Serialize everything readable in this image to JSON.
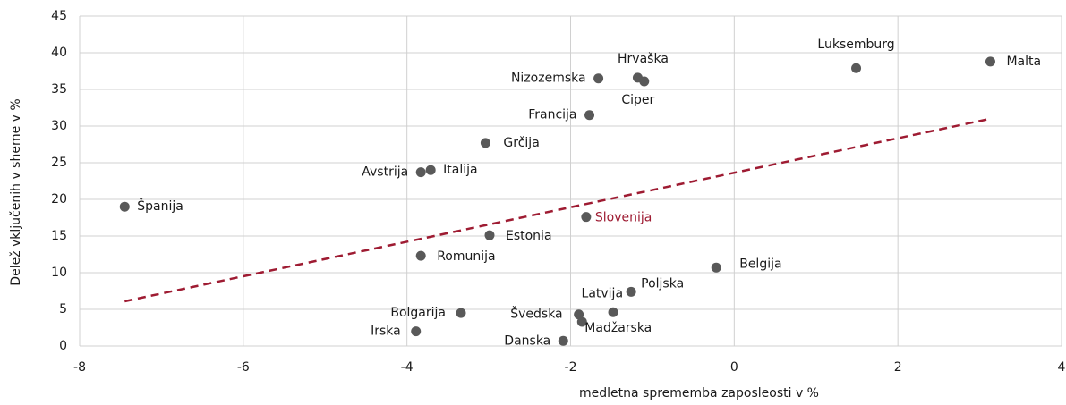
{
  "chart_data": {
    "type": "scatter",
    "x_label": "medletna sprememba zaposleosti v %",
    "y_label": "Delež vključenih  v sheme v %",
    "xlim": [
      -8,
      4
    ],
    "xticks": [
      -8,
      -6,
      -4,
      -2,
      0,
      2,
      4
    ],
    "ylim": [
      0,
      45
    ],
    "yticks": [
      0,
      5,
      10,
      15,
      20,
      25,
      30,
      35,
      40,
      45
    ],
    "grid": true,
    "color": "#595959",
    "highlight_index": 13,
    "highlight_color": "#9e1b32",
    "labels": [
      "Španija",
      "Avstrija",
      "Italija",
      "Grčija",
      "Nizozemska",
      "Hrvaška",
      "Ciper",
      "Francija",
      "Luksemburg",
      "Malta",
      "Estonia",
      "Romunija",
      "Belgija",
      "Slovenija",
      "Poljska",
      "Latvija",
      "Bolgarija",
      "Švedska",
      "Madžarska",
      "Irska",
      "Danska"
    ],
    "x": [
      -7.45,
      -3.83,
      -3.71,
      -3.04,
      -1.66,
      -1.18,
      -1.1,
      -1.77,
      1.49,
      3.13,
      -2.99,
      -3.83,
      -0.22,
      -1.81,
      -1.26,
      -1.48,
      -3.34,
      -1.9,
      -1.86,
      -3.89,
      -2.09
    ],
    "values": [
      19.0,
      23.7,
      24.0,
      27.7,
      36.5,
      36.6,
      36.1,
      31.5,
      37.9,
      38.8,
      15.1,
      12.3,
      10.7,
      17.6,
      7.4,
      4.6,
      4.5,
      4.3,
      3.3,
      2.0,
      0.7
    ],
    "trendline": {
      "color": "#9e1b32",
      "x": [
        -7.45,
        3.13
      ],
      "values": [
        6.1,
        31.0
      ]
    }
  }
}
